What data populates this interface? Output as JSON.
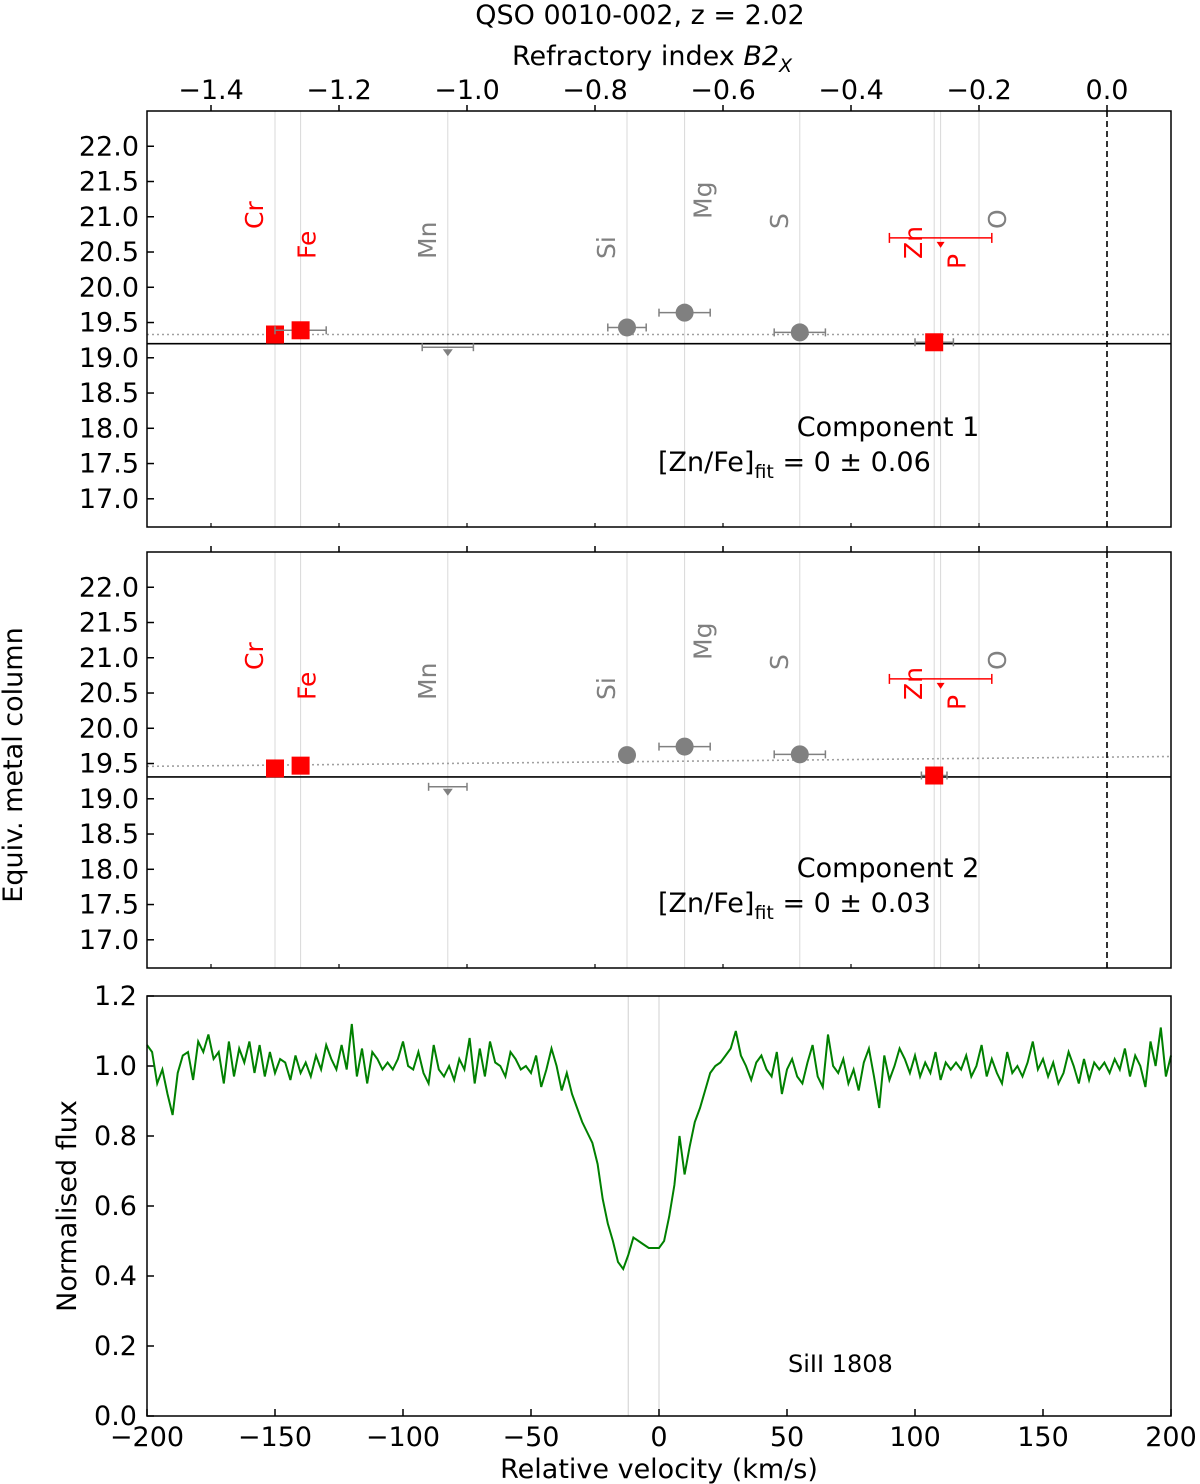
{
  "figure": {
    "title": "QSO 0010-002, z = 2.02",
    "top_axis_label": "Refractory index ",
    "top_axis_label_symbol": "B2",
    "top_axis_label_subscript": "X",
    "shared_ylabel": "Equiv. metal column"
  },
  "colors": {
    "fitted": "#ff0000",
    "other": "#808080",
    "spectrum": "#008000",
    "fit_line": "#000000",
    "trend_line": "#a0a0a0",
    "element_guide": "#d8d8d8"
  },
  "chart_data": [
    {
      "type": "scatter",
      "panel": "component-1",
      "annotation": "Component 1",
      "fit_text": "[Zn/Fe]",
      "fit_subscript": "fit",
      "fit_value": " = 0 ± 0.06",
      "xlim": [
        -1.5,
        0.1
      ],
      "ylim": [
        16.6,
        22.5
      ],
      "xticks": [
        -1.4,
        -1.2,
        -1.0,
        -0.8,
        -0.6,
        -0.4,
        -0.2,
        0.0
      ],
      "xtick_labels": [
        "−1.4",
        "−1.2",
        "−1.0",
        "−0.8",
        "−0.6",
        "−0.4",
        "−0.2",
        "0.0"
      ],
      "yticks": [
        17.0,
        17.5,
        18.0,
        18.5,
        19.0,
        19.5,
        20.0,
        20.5,
        21.0,
        21.5,
        22.0
      ],
      "ytick_labels": [
        "17.0",
        "17.5",
        "18.0",
        "18.5",
        "19.0",
        "19.5",
        "20.0",
        "20.5",
        "21.0",
        "21.5",
        "22.0"
      ],
      "reference_line_x": 0.0,
      "fit_line_y": 19.2,
      "trend_line": {
        "x": [
          -1.5,
          0.1
        ],
        "y": [
          19.33,
          19.33
        ]
      },
      "points": [
        {
          "element": "Cr",
          "x": -1.3,
          "y": 19.33,
          "xerr": 0.0,
          "marker": "square",
          "group": "fitted",
          "upper_limit": false
        },
        {
          "element": "Fe",
          "x": -1.26,
          "y": 19.39,
          "xerr": 0.04,
          "marker": "square",
          "group": "fitted",
          "upper_limit": false
        },
        {
          "element": "Mn",
          "x": -1.03,
          "y": 19.15,
          "xerr": 0.04,
          "marker": "circle",
          "group": "other",
          "upper_limit": true
        },
        {
          "element": "Si",
          "x": -0.75,
          "y": 19.43,
          "xerr": 0.03,
          "marker": "circle",
          "group": "other",
          "upper_limit": false
        },
        {
          "element": "Mg",
          "x": -0.66,
          "y": 19.64,
          "xerr": 0.04,
          "marker": "circle",
          "group": "other",
          "upper_limit": false
        },
        {
          "element": "S",
          "x": -0.48,
          "y": 19.36,
          "xerr": 0.04,
          "marker": "circle",
          "group": "other",
          "upper_limit": false
        },
        {
          "element": "Zn",
          "x": -0.27,
          "y": 19.22,
          "xerr": 0.03,
          "marker": "square",
          "group": "fitted",
          "upper_limit": false
        },
        {
          "element": "P",
          "x": -0.26,
          "y": 20.7,
          "xerr_left": 0.08,
          "xerr_right": 0.08,
          "marker": "none",
          "group": "fitted",
          "upper_limit": true
        },
        {
          "element": "O",
          "x": -0.2,
          "y": null,
          "marker": "none",
          "group": "other",
          "upper_limit": false
        }
      ]
    },
    {
      "type": "scatter",
      "panel": "component-2",
      "annotation": "Component 2",
      "fit_text": "[Zn/Fe]",
      "fit_subscript": "fit",
      "fit_value": " = 0 ± 0.03",
      "xlim": [
        -1.5,
        0.1
      ],
      "ylim": [
        16.6,
        22.5
      ],
      "yticks": [
        17.0,
        17.5,
        18.0,
        18.5,
        19.0,
        19.5,
        20.0,
        20.5,
        21.0,
        21.5,
        22.0
      ],
      "ytick_labels": [
        "17.0",
        "17.5",
        "18.0",
        "18.5",
        "19.0",
        "19.5",
        "20.0",
        "20.5",
        "21.0",
        "21.5",
        "22.0"
      ],
      "reference_line_x": 0.0,
      "fit_line_y": 19.31,
      "trend_line": {
        "x": [
          -1.5,
          0.1
        ],
        "y": [
          19.46,
          19.6
        ]
      },
      "points": [
        {
          "element": "Cr",
          "x": -1.3,
          "y": 19.43,
          "xerr": 0.0,
          "marker": "square",
          "group": "fitted",
          "upper_limit": false
        },
        {
          "element": "Fe",
          "x": -1.26,
          "y": 19.47,
          "xerr": 0.0,
          "marker": "square",
          "group": "fitted",
          "upper_limit": false
        },
        {
          "element": "Mn",
          "x": -1.03,
          "y": 19.17,
          "xerr": 0.03,
          "marker": "circle",
          "group": "other",
          "upper_limit": true
        },
        {
          "element": "Si",
          "x": -0.75,
          "y": 19.62,
          "xerr": 0.0,
          "marker": "circle",
          "group": "other",
          "upper_limit": false
        },
        {
          "element": "Mg",
          "x": -0.66,
          "y": 19.74,
          "xerr": 0.04,
          "marker": "circle",
          "group": "other",
          "upper_limit": false
        },
        {
          "element": "S",
          "x": -0.48,
          "y": 19.63,
          "xerr": 0.04,
          "marker": "circle",
          "group": "other",
          "upper_limit": false
        },
        {
          "element": "Zn",
          "x": -0.27,
          "y": 19.33,
          "xerr": 0.02,
          "marker": "square",
          "group": "fitted",
          "upper_limit": false
        },
        {
          "element": "P",
          "x": -0.26,
          "y": 20.7,
          "xerr_left": 0.08,
          "xerr_right": 0.08,
          "marker": "none",
          "group": "fitted",
          "upper_limit": true
        },
        {
          "element": "O",
          "x": -0.2,
          "y": null,
          "marker": "none",
          "group": "other",
          "upper_limit": false
        }
      ]
    },
    {
      "type": "line",
      "panel": "spectrum",
      "xlabel": "Relative velocity (km/s)",
      "ylabel": "Normalised flux",
      "line_label": "SiII 1808",
      "xlim": [
        -200,
        200
      ],
      "ylim": [
        0.0,
        1.2
      ],
      "xticks": [
        -200,
        -150,
        -100,
        -50,
        0,
        50,
        100,
        150,
        200
      ],
      "xtick_labels": [
        "−200",
        "−150",
        "−100",
        "−50",
        "0",
        "50",
        "100",
        "150",
        "200"
      ],
      "yticks": [
        0.0,
        0.2,
        0.4,
        0.6,
        0.8,
        1.0,
        1.2
      ],
      "ytick_labels": [
        "0.0",
        "0.2",
        "0.4",
        "0.6",
        "0.8",
        "1.0",
        "1.2"
      ],
      "component_velocities": [
        -12,
        0
      ],
      "series": [
        {
          "name": "SiII 1808",
          "x": [
            -200,
            -198,
            -196,
            -194,
            -192,
            -190,
            -188,
            -186,
            -184,
            -182,
            -180,
            -178,
            -176,
            -174,
            -172,
            -170,
            -168,
            -166,
            -164,
            -162,
            -160,
            -158,
            -156,
            -154,
            -152,
            -150,
            -148,
            -146,
            -144,
            -142,
            -140,
            -138,
            -136,
            -134,
            -132,
            -130,
            -128,
            -126,
            -124,
            -122,
            -120,
            -118,
            -116,
            -114,
            -112,
            -110,
            -108,
            -106,
            -104,
            -102,
            -100,
            -98,
            -96,
            -94,
            -92,
            -90,
            -88,
            -86,
            -84,
            -82,
            -80,
            -78,
            -76,
            -74,
            -72,
            -70,
            -68,
            -66,
            -64,
            -62,
            -60,
            -58,
            -56,
            -54,
            -52,
            -50,
            -48,
            -46,
            -44,
            -42,
            -40,
            -38,
            -36,
            -34,
            -32,
            -30,
            -28,
            -26,
            -24,
            -22,
            -20,
            -18,
            -16,
            -14,
            -12,
            -10,
            -8,
            -6,
            -4,
            -2,
            0,
            2,
            4,
            6,
            8,
            10,
            12,
            14,
            16,
            18,
            20,
            22,
            24,
            26,
            28,
            30,
            32,
            34,
            36,
            38,
            40,
            42,
            44,
            46,
            48,
            50,
            52,
            54,
            56,
            58,
            60,
            62,
            64,
            66,
            68,
            70,
            72,
            74,
            76,
            78,
            80,
            82,
            84,
            86,
            88,
            90,
            92,
            94,
            96,
            98,
            100,
            102,
            104,
            106,
            108,
            110,
            112,
            114,
            116,
            118,
            120,
            122,
            124,
            126,
            128,
            130,
            132,
            134,
            136,
            138,
            140,
            142,
            144,
            146,
            148,
            150,
            152,
            154,
            156,
            158,
            160,
            162,
            164,
            166,
            168,
            170,
            172,
            174,
            176,
            178,
            180,
            182,
            184,
            186,
            188,
            190,
            192,
            194,
            196,
            198,
            200
          ],
          "y": [
            1.06,
            1.04,
            0.95,
            0.99,
            0.92,
            0.86,
            0.98,
            1.03,
            1.04,
            0.96,
            1.07,
            1.04,
            1.09,
            1.02,
            1.04,
            0.95,
            1.07,
            0.97,
            1.05,
            1.01,
            1.07,
            0.98,
            1.06,
            0.97,
            1.04,
            0.98,
            1.02,
            1.01,
            0.96,
            1.03,
            0.98,
            1.01,
            0.97,
            1.03,
            0.99,
            1.06,
            1.02,
            0.99,
            1.06,
            0.99,
            1.12,
            0.97,
            1.05,
            0.95,
            1.04,
            1.02,
            0.99,
            1.01,
            0.99,
            1.02,
            1.07,
            1.0,
            0.99,
            1.04,
            0.98,
            0.95,
            1.06,
            0.99,
            0.97,
            1.0,
            0.96,
            1.02,
            0.99,
            1.08,
            0.95,
            1.05,
            0.97,
            1.07,
            1.01,
            1.0,
            0.97,
            1.04,
            1.02,
            0.99,
            1.0,
            0.98,
            1.03,
            0.94,
            0.99,
            1.05,
            1.0,
            0.93,
            0.98,
            0.92,
            0.88,
            0.84,
            0.81,
            0.78,
            0.72,
            0.62,
            0.55,
            0.5,
            0.44,
            0.42,
            0.46,
            0.51,
            0.5,
            0.49,
            0.48,
            0.48,
            0.48,
            0.5,
            0.57,
            0.66,
            0.8,
            0.69,
            0.77,
            0.84,
            0.88,
            0.93,
            0.98,
            1.0,
            1.01,
            1.03,
            1.05,
            1.1,
            1.03,
            1.0,
            0.96,
            1.01,
            1.03,
            0.99,
            0.97,
            1.04,
            0.92,
            0.99,
            1.02,
            0.97,
            0.95,
            1.01,
            1.06,
            0.97,
            0.94,
            1.09,
            1.0,
            0.98,
            1.02,
            0.95,
            0.99,
            0.93,
            1.01,
            1.05,
            0.97,
            0.88,
            1.03,
            0.96,
            1.0,
            1.05,
            1.02,
            0.98,
            1.03,
            0.97,
            1.01,
            0.98,
            1.04,
            0.96,
            1.01,
            0.99,
            1.01,
            0.99,
            1.03,
            0.97,
            1.0,
            1.06,
            0.97,
            1.02,
            0.98,
            0.95,
            1.04,
            0.98,
            1.0,
            0.97,
            1.01,
            1.07,
            0.99,
            1.02,
            0.97,
            1.01,
            0.95,
            0.98,
            1.04,
            1.0,
            0.95,
            1.02,
            0.96,
            1.01,
            0.99,
            1.01,
            0.98,
            1.02,
            0.99,
            1.05,
            0.97,
            1.03,
            1.0,
            0.94,
            1.07,
            1.0,
            1.11,
            0.97,
            1.03
          ]
        }
      ]
    }
  ]
}
